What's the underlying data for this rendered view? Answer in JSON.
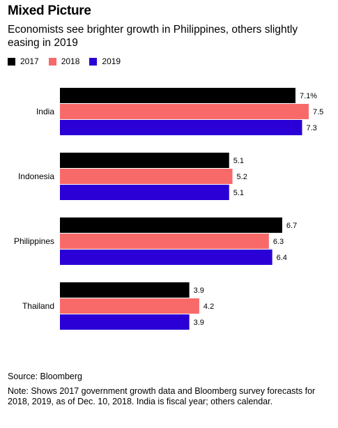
{
  "header": {
    "title": "Mixed Picture",
    "subtitle": "Economists see brighter growth in Philippines, others slightly easing in 2019"
  },
  "legend": [
    {
      "label": "2017",
      "color": "#000000"
    },
    {
      "label": "2018",
      "color": "#f86a6a"
    },
    {
      "label": "2019",
      "color": "#2a00d6"
    }
  ],
  "chart_data": {
    "type": "bar",
    "orientation": "horizontal",
    "title": "Mixed Picture",
    "subtitle": "Economists see brighter growth in Philippines, others slightly easing in 2019",
    "categories": [
      "India",
      "Indonesia",
      "Philippines",
      "Thailand"
    ],
    "series": [
      {
        "name": "2017",
        "color": "#000000",
        "values": [
          7.1,
          5.1,
          6.7,
          3.9
        ],
        "labels": [
          "7.1%",
          "5.1",
          "6.7",
          "3.9"
        ]
      },
      {
        "name": "2018",
        "color": "#f86a6a",
        "values": [
          7.5,
          5.2,
          6.3,
          4.2
        ],
        "labels": [
          "7.5",
          "5.2",
          "6.3",
          "4.2"
        ]
      },
      {
        "name": "2019",
        "color": "#2a00d6",
        "values": [
          7.3,
          5.1,
          6.4,
          3.9
        ],
        "labels": [
          "7.3",
          "5.1",
          "6.4",
          "3.9"
        ]
      }
    ],
    "xlim": [
      0,
      8
    ],
    "grid": false,
    "legend_position": "top-left"
  },
  "footer": {
    "source": "Source: Bloomberg",
    "note": "Note: Shows 2017 government growth data and Bloomberg survey forecasts for 2018, 2019, as of Dec. 10, 2018. India is fiscal year; others calendar."
  }
}
